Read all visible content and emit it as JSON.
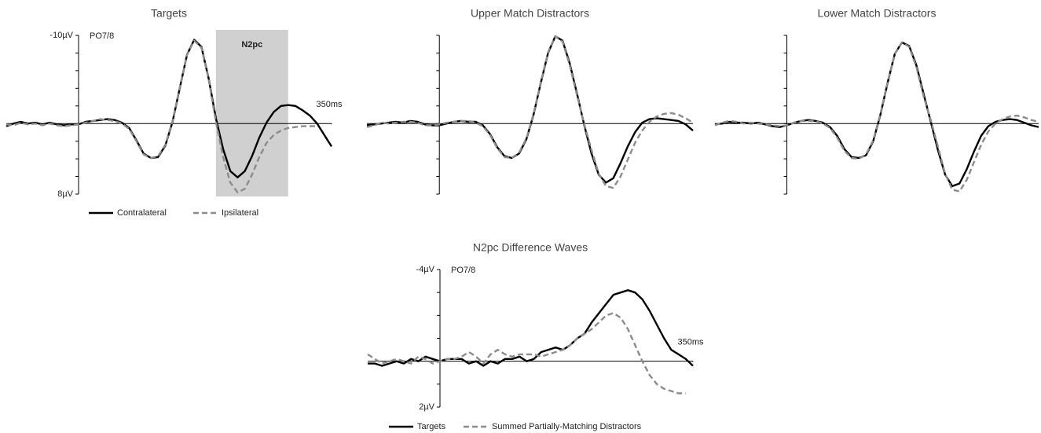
{
  "chart_data": [
    {
      "type": "line",
      "title": "Targets",
      "annotation": "PO7/8",
      "y_inverted": true,
      "legend": true,
      "shade": {
        "xlim": [
          190,
          290
        ],
        "label": "N2pc",
        "color": "#d0d0d0"
      },
      "xlim": [
        -100,
        350
      ],
      "xticks": [
        {
          "value": 350,
          "label": "350ms"
        }
      ],
      "ylim": [
        -10,
        8
      ],
      "yticks": [
        {
          "value": -10,
          "label": "-10µV"
        },
        {
          "value": 8,
          "label": "8µV"
        }
      ],
      "minor_yticks": [
        -8,
        -6,
        -4,
        -2,
        0,
        2,
        4,
        6
      ],
      "x": [
        -100,
        -90,
        -80,
        -70,
        -60,
        -50,
        -40,
        -30,
        -20,
        -10,
        0,
        10,
        20,
        30,
        40,
        50,
        60,
        70,
        80,
        90,
        100,
        110,
        120,
        130,
        140,
        150,
        160,
        170,
        180,
        190,
        200,
        210,
        220,
        230,
        240,
        250,
        260,
        270,
        280,
        290,
        300,
        310,
        320,
        330,
        340,
        350
      ],
      "series": [
        {
          "name": "Contralateral",
          "color": "#000000",
          "dashed": false,
          "values": [
            0.3,
            0,
            -0.2,
            0,
            -0.1,
            0.1,
            -0.1,
            0.1,
            0.2,
            0.1,
            0.1,
            -0.2,
            -0.3,
            -0.4,
            -0.5,
            -0.4,
            -0.1,
            0.5,
            1.9,
            3.4,
            3.9,
            3.8,
            2.5,
            -0.2,
            -4.0,
            -7.8,
            -9.5,
            -8.7,
            -5.1,
            -0.6,
            2.9,
            5.4,
            6.1,
            5.4,
            3.7,
            1.6,
            -0.1,
            -1.3,
            -2.0,
            -2.1,
            -2.0,
            -1.5,
            -0.9,
            0,
            1.3,
            2.6
          ]
        },
        {
          "name": "Ipsilateral",
          "color": "#8c8c8c",
          "dashed": true,
          "values": [
            0.1,
            0.2,
            -0.1,
            0.1,
            0,
            0.2,
            0,
            0.2,
            0.3,
            0.2,
            0.1,
            -0.1,
            -0.3,
            -0.5,
            -0.4,
            -0.3,
            0,
            0.6,
            2.0,
            3.5,
            3.9,
            3.7,
            2.4,
            -0.3,
            -4.1,
            -7.8,
            -9.4,
            -8.6,
            -5.0,
            -0.2,
            3.8,
            6.7,
            7.8,
            7.4,
            5.8,
            3.8,
            2.2,
            1.3,
            0.8,
            0.5,
            0.4,
            0.3,
            0.3,
            0.3,
            null,
            null
          ]
        }
      ]
    },
    {
      "type": "line",
      "title": "Upper Match Distractors",
      "y_inverted": true,
      "legend": false,
      "xlim": [
        -100,
        350
      ],
      "ylim": [
        -10,
        8
      ],
      "minor_yticks": [
        -10,
        -8,
        -6,
        -4,
        -2,
        0,
        2,
        4,
        6,
        8
      ],
      "x": [
        -100,
        -90,
        -80,
        -70,
        -60,
        -50,
        -40,
        -30,
        -20,
        -10,
        0,
        10,
        20,
        30,
        40,
        50,
        60,
        70,
        80,
        90,
        100,
        110,
        120,
        130,
        140,
        150,
        160,
        170,
        180,
        190,
        200,
        210,
        220,
        230,
        240,
        250,
        260,
        270,
        280,
        290,
        300,
        310,
        320,
        330,
        340,
        350
      ],
      "series": [
        {
          "color": "#000000",
          "dashed": false,
          "values": [
            0.2,
            0.1,
            0,
            -0.1,
            -0.2,
            -0.1,
            -0.3,
            -0.2,
            0.1,
            0.2,
            0.2,
            0,
            -0.2,
            -0.3,
            -0.2,
            -0.2,
            0.2,
            1.2,
            2.7,
            3.7,
            3.9,
            3.4,
            1.8,
            -1.0,
            -4.6,
            -8.0,
            -9.9,
            -9.4,
            -6.8,
            -3.4,
            0.2,
            3.4,
            5.8,
            6.7,
            6.2,
            4.5,
            2.6,
            1.0,
            -0.1,
            -0.5,
            -0.6,
            -0.5,
            -0.4,
            -0.3,
            0.1,
            0.8
          ]
        },
        {
          "color": "#8c8c8c",
          "dashed": true,
          "values": [
            0.4,
            0.2,
            -0.1,
            0,
            -0.1,
            -0.2,
            -0.2,
            -0.1,
            0.2,
            0.2,
            0.1,
            -0.1,
            -0.2,
            -0.3,
            -0.3,
            -0.1,
            0.3,
            1.3,
            2.8,
            3.8,
            3.9,
            3.3,
            1.7,
            -1.1,
            -4.7,
            -8.1,
            -9.9,
            -9.3,
            -6.6,
            -3.2,
            0.1,
            3.0,
            5.7,
            7.1,
            7.3,
            6.0,
            4.1,
            2.2,
            0.8,
            -0.2,
            -0.8,
            -1.1,
            -1.2,
            -1.0,
            -0.6,
            -0.1
          ]
        }
      ]
    },
    {
      "type": "line",
      "title": "Lower Match Distractors",
      "y_inverted": true,
      "legend": false,
      "xlim": [
        -100,
        350
      ],
      "ylim": [
        -10,
        8
      ],
      "minor_yticks": [
        -10,
        -8,
        -6,
        -4,
        -2,
        0,
        2,
        4,
        6,
        8
      ],
      "x": [
        -100,
        -90,
        -80,
        -70,
        -60,
        -50,
        -40,
        -30,
        -20,
        -10,
        0,
        10,
        20,
        30,
        40,
        50,
        60,
        70,
        80,
        90,
        100,
        110,
        120,
        130,
        140,
        150,
        160,
        170,
        180,
        190,
        200,
        210,
        220,
        230,
        240,
        250,
        260,
        270,
        280,
        290,
        300,
        310,
        320,
        330,
        340,
        350
      ],
      "series": [
        {
          "color": "#000000",
          "dashed": false,
          "values": [
            0.1,
            0,
            -0.2,
            -0.1,
            -0.1,
            0,
            -0.1,
            0.1,
            0.3,
            0.4,
            0.2,
            -0.1,
            -0.3,
            -0.4,
            -0.3,
            -0.1,
            0.4,
            1.4,
            2.9,
            3.8,
            3.9,
            3.6,
            2.0,
            -1.0,
            -4.6,
            -7.9,
            -9.2,
            -8.8,
            -6.6,
            -3.4,
            -0.2,
            3.0,
            5.8,
            7.1,
            6.8,
            5.2,
            3.2,
            1.4,
            0.3,
            -0.2,
            -0.4,
            -0.5,
            -0.4,
            -0.1,
            0.2,
            0.4
          ]
        },
        {
          "color": "#8c8c8c",
          "dashed": true,
          "values": [
            0.2,
            -0.1,
            -0.3,
            -0.2,
            0,
            -0.1,
            0,
            0.1,
            0.2,
            0.3,
            0.2,
            -0.1,
            -0.3,
            -0.3,
            -0.3,
            0,
            0.5,
            1.6,
            3.1,
            3.9,
            4.0,
            3.5,
            1.9,
            -1.1,
            -4.7,
            -7.9,
            -9.2,
            -8.7,
            -6.4,
            -3.1,
            -0.4,
            2.6,
            5.7,
            7.5,
            7.7,
            6.4,
            4.4,
            2.4,
            0.9,
            0,
            -0.5,
            -0.8,
            -0.9,
            -0.7,
            -0.4,
            -0.2
          ]
        }
      ]
    },
    {
      "type": "line",
      "title": "N2pc Difference Waves",
      "annotation": "PO7/8",
      "y_inverted": true,
      "legend": true,
      "xlim": [
        -100,
        350
      ],
      "xticks": [
        {
          "value": 350,
          "label": "350ms"
        }
      ],
      "ylim": [
        -4,
        2
      ],
      "yticks": [
        {
          "value": -4,
          "label": "-4µV"
        },
        {
          "value": 2,
          "label": "2µV"
        }
      ],
      "minor_yticks": [
        -3,
        -2,
        -1,
        0,
        1
      ],
      "x": [
        -100,
        -90,
        -80,
        -70,
        -60,
        -50,
        -40,
        -30,
        -20,
        -10,
        0,
        10,
        20,
        30,
        40,
        50,
        60,
        70,
        80,
        90,
        100,
        110,
        120,
        130,
        140,
        150,
        160,
        170,
        180,
        190,
        200,
        210,
        220,
        230,
        240,
        250,
        260,
        270,
        280,
        290,
        300,
        310,
        320,
        330,
        340,
        350
      ],
      "series": [
        {
          "name": "Targets",
          "color": "#000000",
          "dashed": false,
          "values": [
            0.1,
            0.1,
            0.2,
            0.1,
            0,
            0.1,
            -0.1,
            0,
            -0.2,
            -0.1,
            0,
            -0.1,
            -0.1,
            -0.1,
            0.1,
            0,
            0.2,
            0,
            0.1,
            -0.1,
            -0.1,
            -0.2,
            0,
            -0.1,
            -0.4,
            -0.5,
            -0.6,
            -0.5,
            -0.7,
            -1.0,
            -1.2,
            -1.7,
            -2.1,
            -2.5,
            -2.9,
            -3.0,
            -3.1,
            -3.0,
            -2.7,
            -2.2,
            -1.6,
            -1.0,
            -0.5,
            -0.3,
            -0.1,
            0.2
          ]
        },
        {
          "name": "Summed Partially-Matching Distractors",
          "color": "#8c8c8c",
          "dashed": true,
          "values": [
            -0.3,
            -0.1,
            0.1,
            0,
            -0.1,
            0,
            0.1,
            -0.2,
            -0.1,
            0.1,
            0,
            -0.1,
            -0.1,
            -0.2,
            -0.4,
            -0.2,
            0.1,
            -0.3,
            -0.5,
            -0.3,
            -0.2,
            -0.3,
            -0.3,
            -0.3,
            -0.2,
            -0.3,
            -0.4,
            -0.5,
            -0.7,
            -1.0,
            -1.2,
            -1.4,
            -1.7,
            -2.0,
            -2.1,
            -1.9,
            -1.4,
            -0.7,
            0,
            0.6,
            1.0,
            1.2,
            1.3,
            1.4,
            1.4,
            null
          ]
        }
      ]
    }
  ]
}
